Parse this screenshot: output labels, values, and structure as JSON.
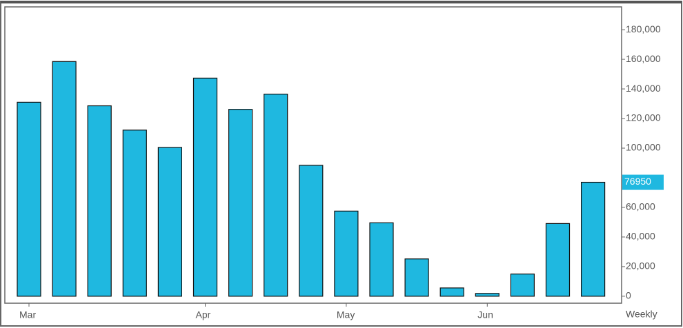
{
  "chart_data": {
    "type": "bar",
    "categories": [
      "Mar",
      null,
      null,
      null,
      null,
      "Apr",
      null,
      null,
      null,
      "May",
      null,
      null,
      null,
      "Jun",
      null,
      null,
      null
    ],
    "values": [
      131000,
      158500,
      128600,
      112200,
      100500,
      147300,
      126200,
      136500,
      88400,
      57500,
      49600,
      25200,
      5600,
      1900,
      15000,
      49100,
      76950
    ],
    "color": "#1fb8e0",
    "ylim": [
      -4700,
      195400
    ],
    "yticks": [
      0,
      {
        "value": 20000,
        "label": "20,000"
      },
      {
        "value": 40000,
        "label": "40,000"
      },
      {
        "value": 60000,
        "label": "60,000"
      },
      {
        "value": 100000,
        "label": "100,000"
      },
      {
        "value": 120000,
        "label": "120,000"
      },
      {
        "value": 140000,
        "label": "140,000"
      },
      {
        "value": 160000,
        "label": "160,000"
      },
      {
        "value": 180000,
        "label": "180,000"
      }
    ],
    "interval": "Weekly"
  }
}
